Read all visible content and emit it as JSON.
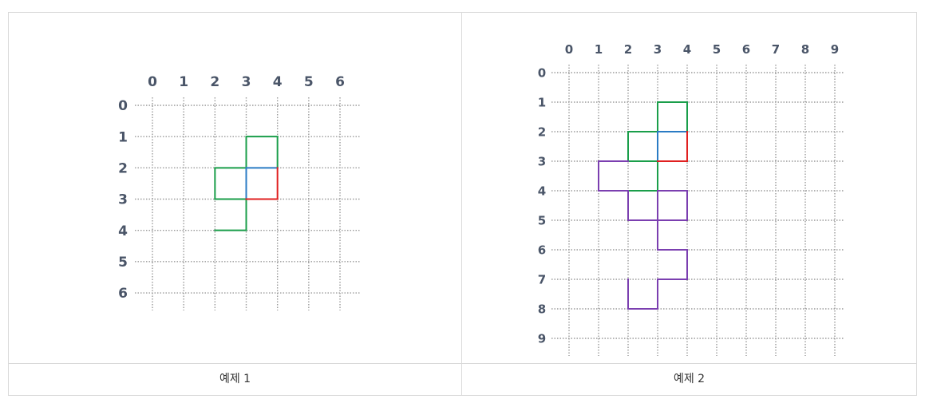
{
  "examples": [
    {
      "caption": "예제 1",
      "grid_size": 7,
      "row_labels": [
        "0",
        "1",
        "2",
        "3",
        "4",
        "5",
        "6"
      ],
      "col_labels": [
        "0",
        "1",
        "2",
        "3",
        "4",
        "5",
        "6"
      ],
      "segments": [
        {
          "color": "#1a9e4a",
          "points": [
            [
              3,
              2
            ],
            [
              3,
              1
            ],
            [
              4,
              1
            ],
            [
              4,
              2
            ]
          ]
        },
        {
          "color": "#1a9e4a",
          "points": [
            [
              3,
              2
            ],
            [
              2,
              2
            ],
            [
              2,
              3
            ],
            [
              3,
              3
            ],
            [
              3,
              4
            ],
            [
              2,
              4
            ]
          ]
        },
        {
          "color": "#2a7bc4",
          "points": [
            [
              3,
              2
            ],
            [
              4,
              2
            ]
          ]
        },
        {
          "color": "#2a7bc4",
          "points": [
            [
              3,
              2
            ],
            [
              3,
              3
            ]
          ]
        },
        {
          "color": "#e02020",
          "points": [
            [
              4,
              2
            ],
            [
              4,
              3
            ],
            [
              3,
              3
            ]
          ]
        }
      ]
    },
    {
      "caption": "예제 2",
      "grid_size": 10,
      "row_labels": [
        "0",
        "1",
        "2",
        "3",
        "4",
        "5",
        "6",
        "7",
        "8",
        "9"
      ],
      "col_labels": [
        "0",
        "1",
        "2",
        "3",
        "4",
        "5",
        "6",
        "7",
        "8",
        "9"
      ],
      "segments": [
        {
          "color": "#1a9e4a",
          "points": [
            [
              3,
              2
            ],
            [
              3,
              1
            ],
            [
              4,
              1
            ],
            [
              4,
              2
            ]
          ]
        },
        {
          "color": "#1a9e4a",
          "points": [
            [
              3,
              2
            ],
            [
              2,
              2
            ],
            [
              2,
              3
            ],
            [
              3,
              3
            ],
            [
              3,
              4
            ],
            [
              2,
              4
            ]
          ]
        },
        {
          "color": "#2a7bc4",
          "points": [
            [
              3,
              2
            ],
            [
              4,
              2
            ]
          ]
        },
        {
          "color": "#2a7bc4",
          "points": [
            [
              3,
              2
            ],
            [
              3,
              3
            ]
          ]
        },
        {
          "color": "#e02020",
          "points": [
            [
              4,
              2
            ],
            [
              4,
              3
            ],
            [
              3,
              3
            ]
          ]
        },
        {
          "color": "#7b3fb0",
          "points": [
            [
              2,
              3
            ],
            [
              1,
              3
            ],
            [
              1,
              4
            ],
            [
              2,
              4
            ],
            [
              2,
              5
            ],
            [
              4,
              5
            ],
            [
              4,
              4
            ],
            [
              3,
              4
            ],
            [
              3,
              6
            ],
            [
              4,
              6
            ],
            [
              4,
              7
            ],
            [
              3,
              7
            ],
            [
              3,
              8
            ],
            [
              2,
              8
            ],
            [
              2,
              7
            ]
          ]
        }
      ]
    }
  ]
}
